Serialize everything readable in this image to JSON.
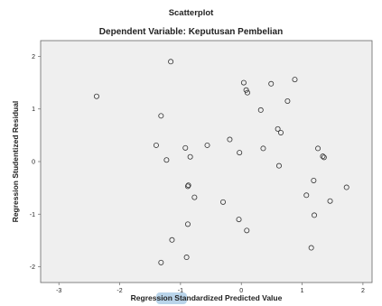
{
  "chart_data": {
    "type": "scatter",
    "title": "Scatterplot",
    "subtitle": "Dependent Variable: Keputusan Pembelian",
    "xlabel": "Regression Standardized Predicted Value",
    "ylabel": "Regression Studentized Residual",
    "xlim": [
      -3.3,
      2.15
    ],
    "ylim": [
      -2.3,
      2.3
    ],
    "xticks": [
      "-3",
      "-2",
      "-1",
      "0",
      "1",
      "2"
    ],
    "yticks": [
      "2",
      "1",
      "0",
      "-1",
      "-2"
    ],
    "grid": false,
    "colors": {
      "plot_bg": "#efefef",
      "marker": "#333333",
      "frame": "#666666"
    },
    "points": [
      {
        "x": -2.38,
        "y": 1.24
      },
      {
        "x": -1.32,
        "y": 0.87
      },
      {
        "x": -1.4,
        "y": 0.31
      },
      {
        "x": -1.23,
        "y": 0.03
      },
      {
        "x": -1.32,
        "y": -1.92
      },
      {
        "x": -1.16,
        "y": 1.9
      },
      {
        "x": -1.14,
        "y": -1.49
      },
      {
        "x": -0.92,
        "y": 0.26
      },
      {
        "x": -0.88,
        "y": -0.47
      },
      {
        "x": -0.87,
        "y": -0.45
      },
      {
        "x": -0.84,
        "y": 0.09
      },
      {
        "x": -0.88,
        "y": -1.19
      },
      {
        "x": -0.9,
        "y": -1.82
      },
      {
        "x": -0.77,
        "y": -0.68
      },
      {
        "x": -0.56,
        "y": 0.31
      },
      {
        "x": -0.3,
        "y": -0.77
      },
      {
        "x": -0.19,
        "y": 0.42
      },
      {
        "x": -0.03,
        "y": 0.17
      },
      {
        "x": -0.04,
        "y": -1.1
      },
      {
        "x": 0.04,
        "y": 1.5
      },
      {
        "x": 0.08,
        "y": 1.36
      },
      {
        "x": 0.1,
        "y": 1.31
      },
      {
        "x": 0.09,
        "y": -1.31
      },
      {
        "x": 0.32,
        "y": 0.98
      },
      {
        "x": 0.36,
        "y": 0.25
      },
      {
        "x": 0.49,
        "y": 1.48
      },
      {
        "x": 0.6,
        "y": 0.62
      },
      {
        "x": 0.65,
        "y": 0.55
      },
      {
        "x": 0.62,
        "y": -0.08
      },
      {
        "x": 0.76,
        "y": 1.15
      },
      {
        "x": 0.88,
        "y": 1.56
      },
      {
        "x": 1.07,
        "y": -0.64
      },
      {
        "x": 1.19,
        "y": -0.36
      },
      {
        "x": 1.2,
        "y": -1.02
      },
      {
        "x": 1.15,
        "y": -1.64
      },
      {
        "x": 1.26,
        "y": 0.25
      },
      {
        "x": 1.34,
        "y": 0.1
      },
      {
        "x": 1.36,
        "y": 0.08
      },
      {
        "x": 1.46,
        "y": -0.75
      },
      {
        "x": 1.73,
        "y": -0.49
      }
    ]
  }
}
